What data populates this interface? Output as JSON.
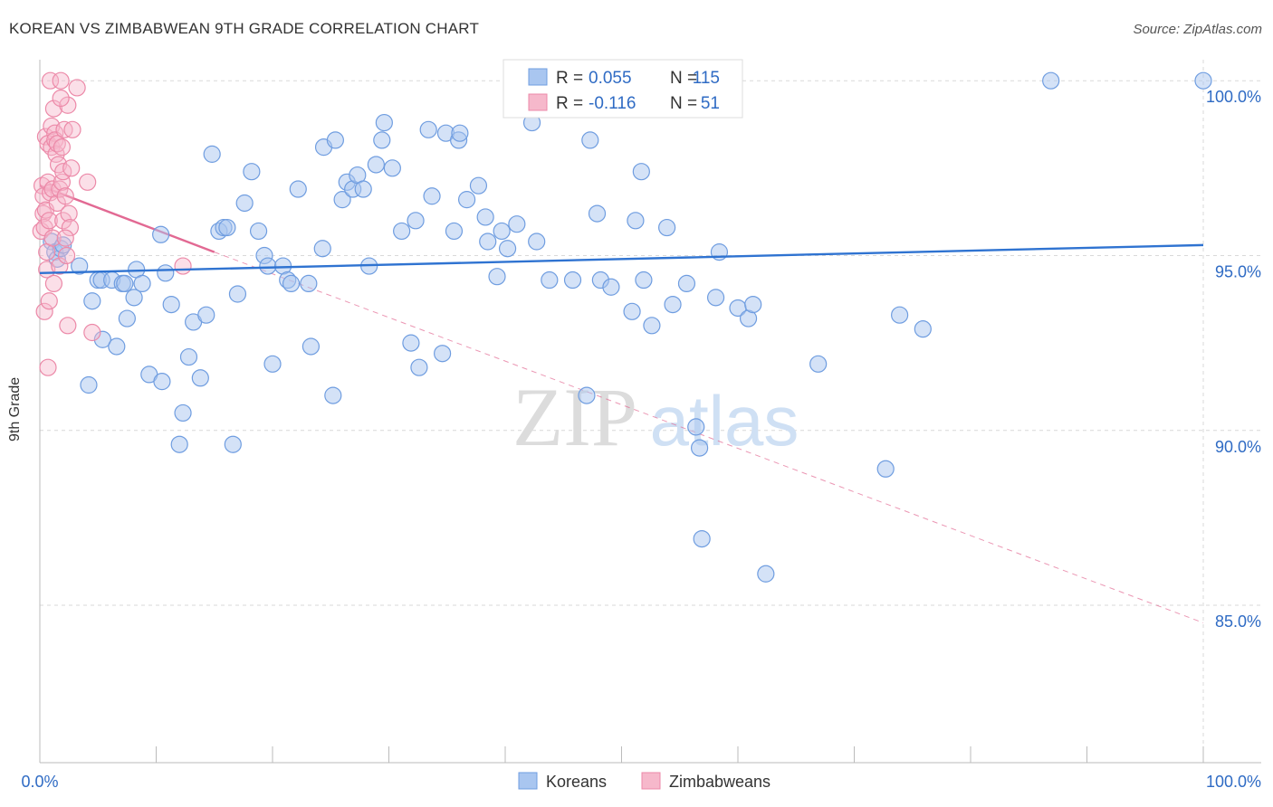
{
  "header": {
    "title": "KOREAN VS ZIMBABWEAN 9TH GRADE CORRELATION CHART",
    "source": "Source: ZipAtlas.com"
  },
  "watermark": {
    "zip": "ZIP",
    "atlas": "atlas"
  },
  "legend_box": {
    "rows": [
      {
        "r_label": "R =",
        "r_value": "0.055",
        "n_label": "N =",
        "n_value": "115"
      },
      {
        "r_label": "R =",
        "r_value": "-0.116",
        "n_label": "N =",
        "n_value": "51"
      }
    ]
  },
  "colors": {
    "korean_fill": "#a9c6f0",
    "korean_stroke": "#6f9de0",
    "korean_line": "#2f73d1",
    "zim_fill": "#f6b8cb",
    "zim_stroke": "#ec89a8",
    "zim_line": "#e26993",
    "value_text": "#2f6bc4",
    "grid": "#d9d9d9"
  },
  "chart_data": {
    "type": "scatter",
    "title": "KOREAN VS ZIMBABWEAN 9TH GRADE CORRELATION CHART",
    "xlabel": "",
    "ylabel": "9th Grade",
    "xlim": [
      0,
      100
    ],
    "ylim": [
      80.5,
      100.6
    ],
    "x_tick_labels": [
      "0.0%",
      "100.0%"
    ],
    "y_ticks": [
      85,
      90,
      95,
      100
    ],
    "y_tick_labels": [
      "85.0%",
      "90.0%",
      "95.0%",
      "100.0%"
    ],
    "grid": true,
    "legend_position": "bottom-center",
    "series": [
      {
        "name": "Koreans",
        "R": 0.055,
        "N": 115,
        "trend": {
          "x": [
            0,
            100
          ],
          "y": [
            94.5,
            95.3
          ],
          "style": "solid"
        },
        "points": [
          [
            1.0,
            95.4
          ],
          [
            1.3,
            95.1
          ],
          [
            1.5,
            94.9
          ],
          [
            1.8,
            95.2
          ],
          [
            2.0,
            95.3
          ],
          [
            3.4,
            94.7
          ],
          [
            4.2,
            91.3
          ],
          [
            4.5,
            93.7
          ],
          [
            5.0,
            94.3
          ],
          [
            5.3,
            94.3
          ],
          [
            5.4,
            92.6
          ],
          [
            6.2,
            94.3
          ],
          [
            6.6,
            92.4
          ],
          [
            7.1,
            94.2
          ],
          [
            7.3,
            94.2
          ],
          [
            7.5,
            93.2
          ],
          [
            8.1,
            93.8
          ],
          [
            8.3,
            94.6
          ],
          [
            8.8,
            94.2
          ],
          [
            9.4,
            91.6
          ],
          [
            10.4,
            95.6
          ],
          [
            10.5,
            91.4
          ],
          [
            10.8,
            94.5
          ],
          [
            11.3,
            93.6
          ],
          [
            12.0,
            89.6
          ],
          [
            12.3,
            90.5
          ],
          [
            12.8,
            92.1
          ],
          [
            13.2,
            93.1
          ],
          [
            13.8,
            91.5
          ],
          [
            14.3,
            93.3
          ],
          [
            14.8,
            97.9
          ],
          [
            15.4,
            95.7
          ],
          [
            15.8,
            95.8
          ],
          [
            16.1,
            95.8
          ],
          [
            16.6,
            89.6
          ],
          [
            17.0,
            93.9
          ],
          [
            17.6,
            96.5
          ],
          [
            18.2,
            97.4
          ],
          [
            18.8,
            95.7
          ],
          [
            19.3,
            95.0
          ],
          [
            19.6,
            94.7
          ],
          [
            20.0,
            91.9
          ],
          [
            20.9,
            94.7
          ],
          [
            21.3,
            94.3
          ],
          [
            21.6,
            94.2
          ],
          [
            22.2,
            96.9
          ],
          [
            23.1,
            94.2
          ],
          [
            23.3,
            92.4
          ],
          [
            24.3,
            95.2
          ],
          [
            24.4,
            98.1
          ],
          [
            25.4,
            98.3
          ],
          [
            25.2,
            91.0
          ],
          [
            26.0,
            96.6
          ],
          [
            26.4,
            97.1
          ],
          [
            26.9,
            96.9
          ],
          [
            27.3,
            97.3
          ],
          [
            27.8,
            96.9
          ],
          [
            28.3,
            94.7
          ],
          [
            28.9,
            97.6
          ],
          [
            29.4,
            98.3
          ],
          [
            29.6,
            98.8
          ],
          [
            30.3,
            97.5
          ],
          [
            31.1,
            95.7
          ],
          [
            31.9,
            92.5
          ],
          [
            32.3,
            96.0
          ],
          [
            32.6,
            91.8
          ],
          [
            33.4,
            98.6
          ],
          [
            33.7,
            96.7
          ],
          [
            34.6,
            92.2
          ],
          [
            34.9,
            98.5
          ],
          [
            35.6,
            95.7
          ],
          [
            36.0,
            98.3
          ],
          [
            36.1,
            98.5
          ],
          [
            36.7,
            96.6
          ],
          [
            37.7,
            97.0
          ],
          [
            38.3,
            96.1
          ],
          [
            38.5,
            95.4
          ],
          [
            39.3,
            94.4
          ],
          [
            39.7,
            95.7
          ],
          [
            40.2,
            95.2
          ],
          [
            40.8,
            99.9
          ],
          [
            41.0,
            95.9
          ],
          [
            42.3,
            98.8
          ],
          [
            42.7,
            95.4
          ],
          [
            43.8,
            94.3
          ],
          [
            45.8,
            94.3
          ],
          [
            47.0,
            91.0
          ],
          [
            47.3,
            98.3
          ],
          [
            47.9,
            96.2
          ],
          [
            48.2,
            94.3
          ],
          [
            49.1,
            94.1
          ],
          [
            50.9,
            93.4
          ],
          [
            51.2,
            96.0
          ],
          [
            51.7,
            97.4
          ],
          [
            51.9,
            94.3
          ],
          [
            52.6,
            93.0
          ],
          [
            53.9,
            95.8
          ],
          [
            54.4,
            93.6
          ],
          [
            55.6,
            94.2
          ],
          [
            56.4,
            90.1
          ],
          [
            56.7,
            89.5
          ],
          [
            56.9,
            86.9
          ],
          [
            58.1,
            93.8
          ],
          [
            58.4,
            95.1
          ],
          [
            60.0,
            93.5
          ],
          [
            60.9,
            93.2
          ],
          [
            61.3,
            93.6
          ],
          [
            62.4,
            85.9
          ],
          [
            66.9,
            91.9
          ],
          [
            72.7,
            88.9
          ],
          [
            73.9,
            93.3
          ],
          [
            75.9,
            92.9
          ],
          [
            86.9,
            100.0
          ],
          [
            100.0,
            100.0
          ],
          [
            48.5,
            100.0
          ]
        ]
      },
      {
        "name": "Zimbabweans",
        "R": -0.116,
        "N": 51,
        "trend": {
          "x": [
            0,
            15
          ],
          "y": [
            97.0,
            95.1
          ],
          "style": "solid",
          "extended": {
            "x": [
              15,
              100
            ],
            "y": [
              95.1,
              84.5
            ],
            "style": "dashed"
          }
        },
        "points": [
          [
            0.1,
            95.7
          ],
          [
            0.2,
            97.0
          ],
          [
            0.3,
            96.7
          ],
          [
            0.3,
            96.2
          ],
          [
            0.4,
            95.8
          ],
          [
            0.4,
            93.4
          ],
          [
            0.5,
            98.4
          ],
          [
            0.5,
            96.3
          ],
          [
            0.6,
            95.1
          ],
          [
            0.6,
            94.6
          ],
          [
            0.7,
            91.8
          ],
          [
            0.7,
            98.2
          ],
          [
            0.7,
            97.1
          ],
          [
            0.8,
            96.0
          ],
          [
            0.8,
            93.7
          ],
          [
            0.9,
            100.0
          ],
          [
            0.9,
            96.8
          ],
          [
            1.0,
            98.1
          ],
          [
            1.0,
            98.7
          ],
          [
            1.1,
            96.9
          ],
          [
            1.1,
            95.5
          ],
          [
            1.2,
            94.2
          ],
          [
            1.2,
            99.2
          ],
          [
            1.3,
            98.5
          ],
          [
            1.3,
            98.3
          ],
          [
            1.4,
            97.9
          ],
          [
            1.5,
            98.2
          ],
          [
            1.5,
            96.5
          ],
          [
            1.6,
            97.6
          ],
          [
            1.7,
            96.9
          ],
          [
            1.7,
            94.7
          ],
          [
            1.8,
            100.0
          ],
          [
            1.9,
            98.1
          ],
          [
            1.9,
            97.1
          ],
          [
            2.0,
            97.4
          ],
          [
            2.0,
            96.0
          ],
          [
            2.1,
            98.6
          ],
          [
            2.2,
            96.7
          ],
          [
            2.3,
            95.0
          ],
          [
            2.4,
            93.0
          ],
          [
            2.4,
            99.3
          ],
          [
            2.5,
            96.2
          ],
          [
            2.6,
            95.8
          ],
          [
            2.7,
            97.5
          ],
          [
            2.8,
            98.6
          ],
          [
            2.2,
            95.5
          ],
          [
            1.8,
            99.5
          ],
          [
            3.2,
            99.8
          ],
          [
            4.1,
            97.1
          ],
          [
            4.5,
            92.8
          ],
          [
            12.3,
            94.7
          ]
        ]
      }
    ]
  }
}
